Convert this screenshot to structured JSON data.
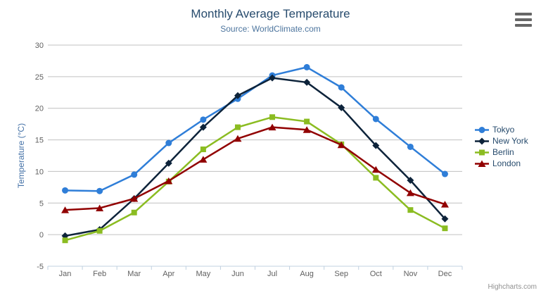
{
  "chart": {
    "title": "Monthly Average Temperature",
    "subtitle": "Source: WorldClimate.com",
    "y_axis_title": "Temperature (°C)",
    "credits": "Highcharts.com"
  },
  "icons": {
    "export_menu": "hamburger-icon"
  },
  "colors": {
    "title": "#274b6d",
    "subtitle": "#4d759e",
    "axis_label": "#606060",
    "y_axis_title": "#4572a7",
    "gridline": "#c0c0c0",
    "axis_line": "#c0d0e0",
    "legend_text": "#274b6d",
    "credits": "#909090",
    "background": "#ffffff"
  },
  "chart_data": {
    "type": "line",
    "title": "Monthly Average Temperature",
    "subtitle": "Source: WorldClimate.com",
    "xlabel": "",
    "ylabel": "Temperature (°C)",
    "categories": [
      "Jan",
      "Feb",
      "Mar",
      "Apr",
      "May",
      "Jun",
      "Jul",
      "Aug",
      "Sep",
      "Oct",
      "Nov",
      "Dec"
    ],
    "series": [
      {
        "name": "Tokyo",
        "color": "#2f7ed8",
        "marker": "circle",
        "values": [
          7.0,
          6.9,
          9.5,
          14.5,
          18.2,
          21.5,
          25.2,
          26.5,
          23.3,
          18.3,
          13.9,
          9.6
        ]
      },
      {
        "name": "New York",
        "color": "#0d233a",
        "marker": "diamond",
        "values": [
          -0.2,
          0.8,
          5.7,
          11.3,
          17.0,
          22.0,
          24.8,
          24.1,
          20.1,
          14.1,
          8.6,
          2.5
        ]
      },
      {
        "name": "Berlin",
        "color": "#8bbc21",
        "marker": "square",
        "values": [
          -0.9,
          0.6,
          3.5,
          8.4,
          13.5,
          17.0,
          18.6,
          17.9,
          14.3,
          9.0,
          3.9,
          1.0
        ]
      },
      {
        "name": "London",
        "color": "#910000",
        "marker": "triangle",
        "values": [
          3.9,
          4.2,
          5.7,
          8.5,
          11.9,
          15.2,
          17.0,
          16.6,
          14.2,
          10.3,
          6.6,
          4.8
        ]
      }
    ],
    "ylim": [
      -5,
      30
    ],
    "y_tick_interval": 5,
    "grid": true,
    "legend_position": "right"
  }
}
